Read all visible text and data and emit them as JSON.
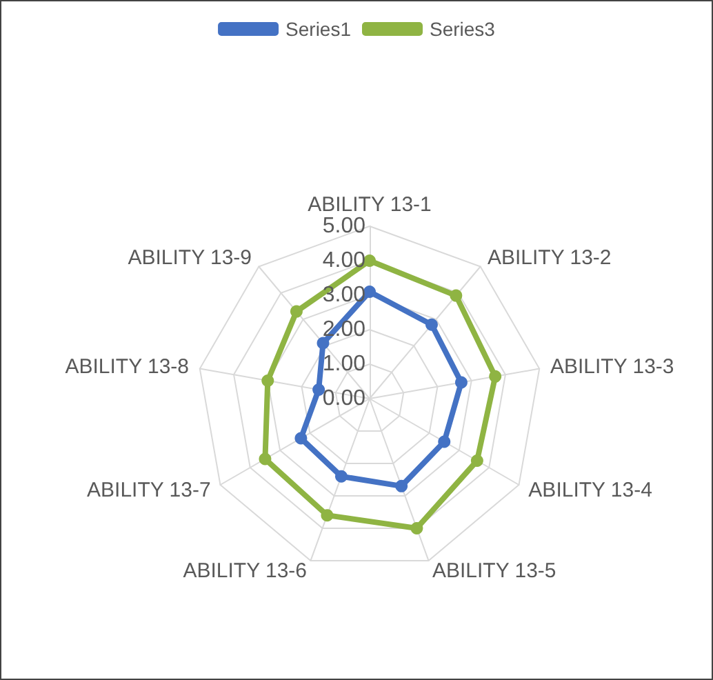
{
  "chart_data": {
    "type": "radar",
    "categories": [
      "ABILITY 13-1",
      "ABILITY 13-2",
      "ABILITY 13-3",
      "ABILITY 13-4",
      "ABILITY 13-5",
      "ABILITY 13-6",
      "ABILITY 13-7",
      "ABILITY 13-8",
      "ABILITY 13-9"
    ],
    "series": [
      {
        "name": "Series1",
        "color": "#4472c4",
        "values": [
          3.1,
          2.8,
          2.7,
          2.5,
          2.7,
          2.4,
          2.3,
          1.5,
          2.1
        ]
      },
      {
        "name": "Series3",
        "color": "#8fb443",
        "values": [
          4.0,
          3.9,
          3.7,
          3.6,
          4.0,
          3.6,
          3.5,
          3.0,
          3.3
        ]
      }
    ],
    "ylim": [
      0,
      5
    ],
    "yticks": [
      {
        "value": 0,
        "label": "0.00"
      },
      {
        "value": 1,
        "label": "1.00"
      },
      {
        "value": 2,
        "label": "2.00"
      },
      {
        "value": 3,
        "label": "3.00"
      },
      {
        "value": 4,
        "label": "4.00"
      },
      {
        "value": 5,
        "label": "5.00"
      }
    ],
    "legend": "top",
    "marker": "circle",
    "grid": true
  }
}
